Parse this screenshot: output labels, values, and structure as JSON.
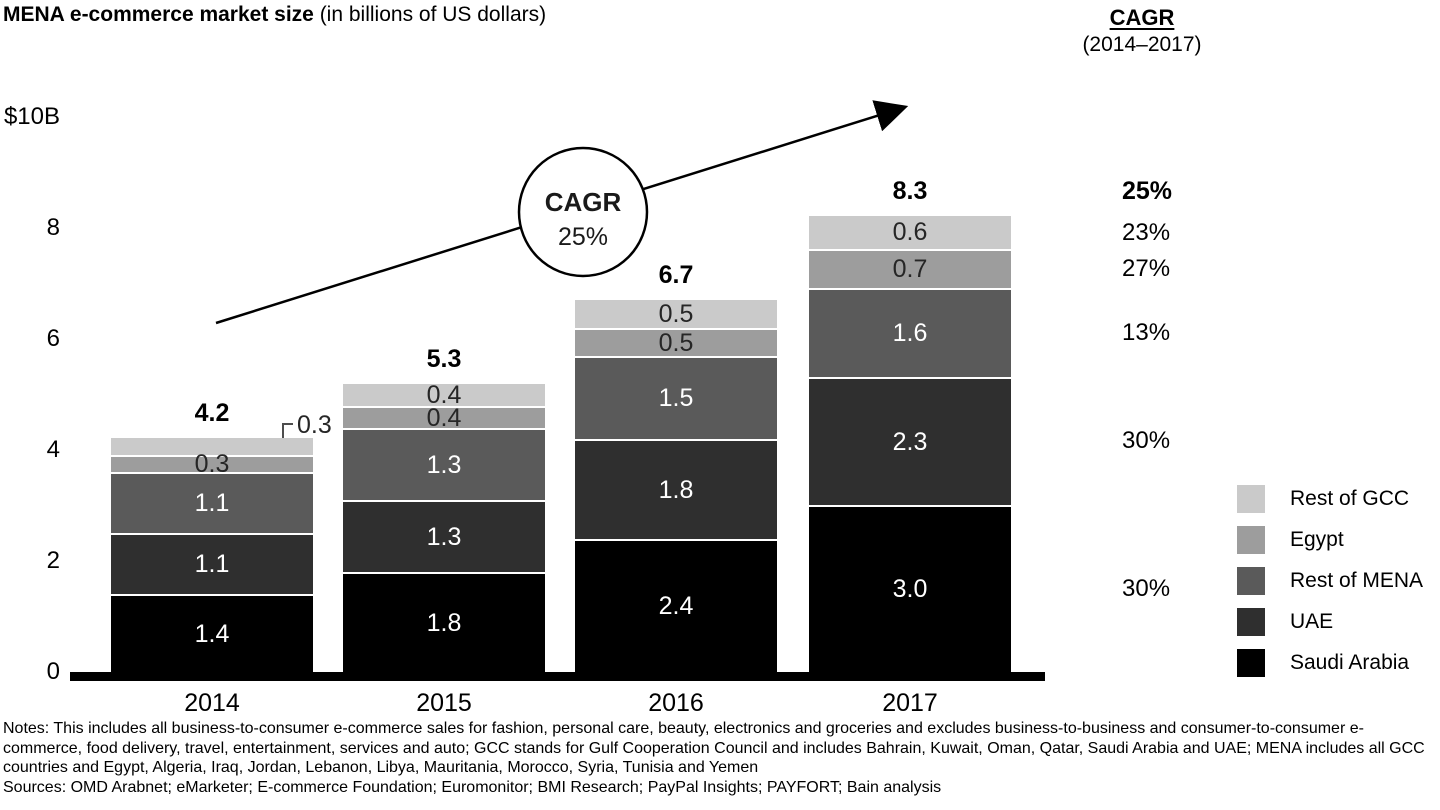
{
  "title": {
    "main": "MENA e-commerce market size",
    "subtitle": " (in billions of US dollars)"
  },
  "cagr_header": {
    "title": "CAGR",
    "subtitle": "(2014–2017)"
  },
  "chart_data": {
    "type": "bar",
    "stacked": true,
    "unit": "billions of US dollars",
    "categories": [
      "2014",
      "2015",
      "2016",
      "2017"
    ],
    "series": [
      {
        "name": "Saudi Arabia",
        "color": "#000000",
        "label_color": "#ffffff",
        "values": [
          1.4,
          1.8,
          2.4,
          3.0
        ]
      },
      {
        "name": "UAE",
        "color": "#2f2f2f",
        "label_color": "#ffffff",
        "values": [
          1.1,
          1.3,
          1.8,
          2.3
        ]
      },
      {
        "name": "Rest of MENA",
        "color": "#5a5a5a",
        "label_color": "#ffffff",
        "values": [
          1.1,
          1.3,
          1.5,
          1.6
        ]
      },
      {
        "name": "Egypt",
        "color": "#9d9d9d",
        "label_color": "#262626",
        "values": [
          0.3,
          0.4,
          0.5,
          0.7
        ]
      },
      {
        "name": "Rest of GCC",
        "color": "#cacaca",
        "label_color": "#262626",
        "values": [
          0.3,
          0.4,
          0.5,
          0.6
        ]
      }
    ],
    "totals": [
      "4.2",
      "5.3",
      "6.7",
      "8.3"
    ],
    "y_axis": {
      "max": 10,
      "ticks": [
        {
          "v": 0,
          "label": "0"
        },
        {
          "v": 2,
          "label": "2"
        },
        {
          "v": 4,
          "label": "4"
        },
        {
          "v": 6,
          "label": "6"
        },
        {
          "v": 8,
          "label": "8"
        },
        {
          "v": 10,
          "label": "$10B"
        }
      ]
    },
    "callout": {
      "category": "2014",
      "series": "Rest of GCC",
      "value": "0.3"
    },
    "legend_position": "right",
    "grid": false
  },
  "annotation": {
    "line1": "CAGR",
    "line2": "25%"
  },
  "cagr_column": {
    "total": "25%",
    "values": [
      {
        "series": "Rest of GCC",
        "label": "23%"
      },
      {
        "series": "Egypt",
        "label": "27%"
      },
      {
        "series": "Rest of MENA",
        "label": "13%"
      },
      {
        "series": "UAE",
        "label": "30%"
      },
      {
        "series": "Saudi Arabia",
        "label": "30%"
      }
    ]
  },
  "legend": [
    "Rest of GCC",
    "Egypt",
    "Rest of MENA",
    "UAE",
    "Saudi Arabia"
  ],
  "notes": "Notes: This includes all business-to-consumer e-commerce sales for fashion, personal care, beauty, electronics and groceries and excludes business-to-business and consumer-to-consumer e-commerce, food delivery, travel, entertainment, services and auto; GCC stands for Gulf Cooperation Council and includes Bahrain, Kuwait, Oman, Qatar, Saudi Arabia and UAE; MENA includes all GCC countries and Egypt, Algeria, Iraq, Jordan, Lebanon, Libya, Mauritania, Morocco, Syria, Tunisia and Yemen",
  "sources": "Sources: OMD Arabnet; eMarketer; E-commerce Foundation; Euromonitor; BMI Research; PayPal Insights; PAYFORT; Bain analysis"
}
